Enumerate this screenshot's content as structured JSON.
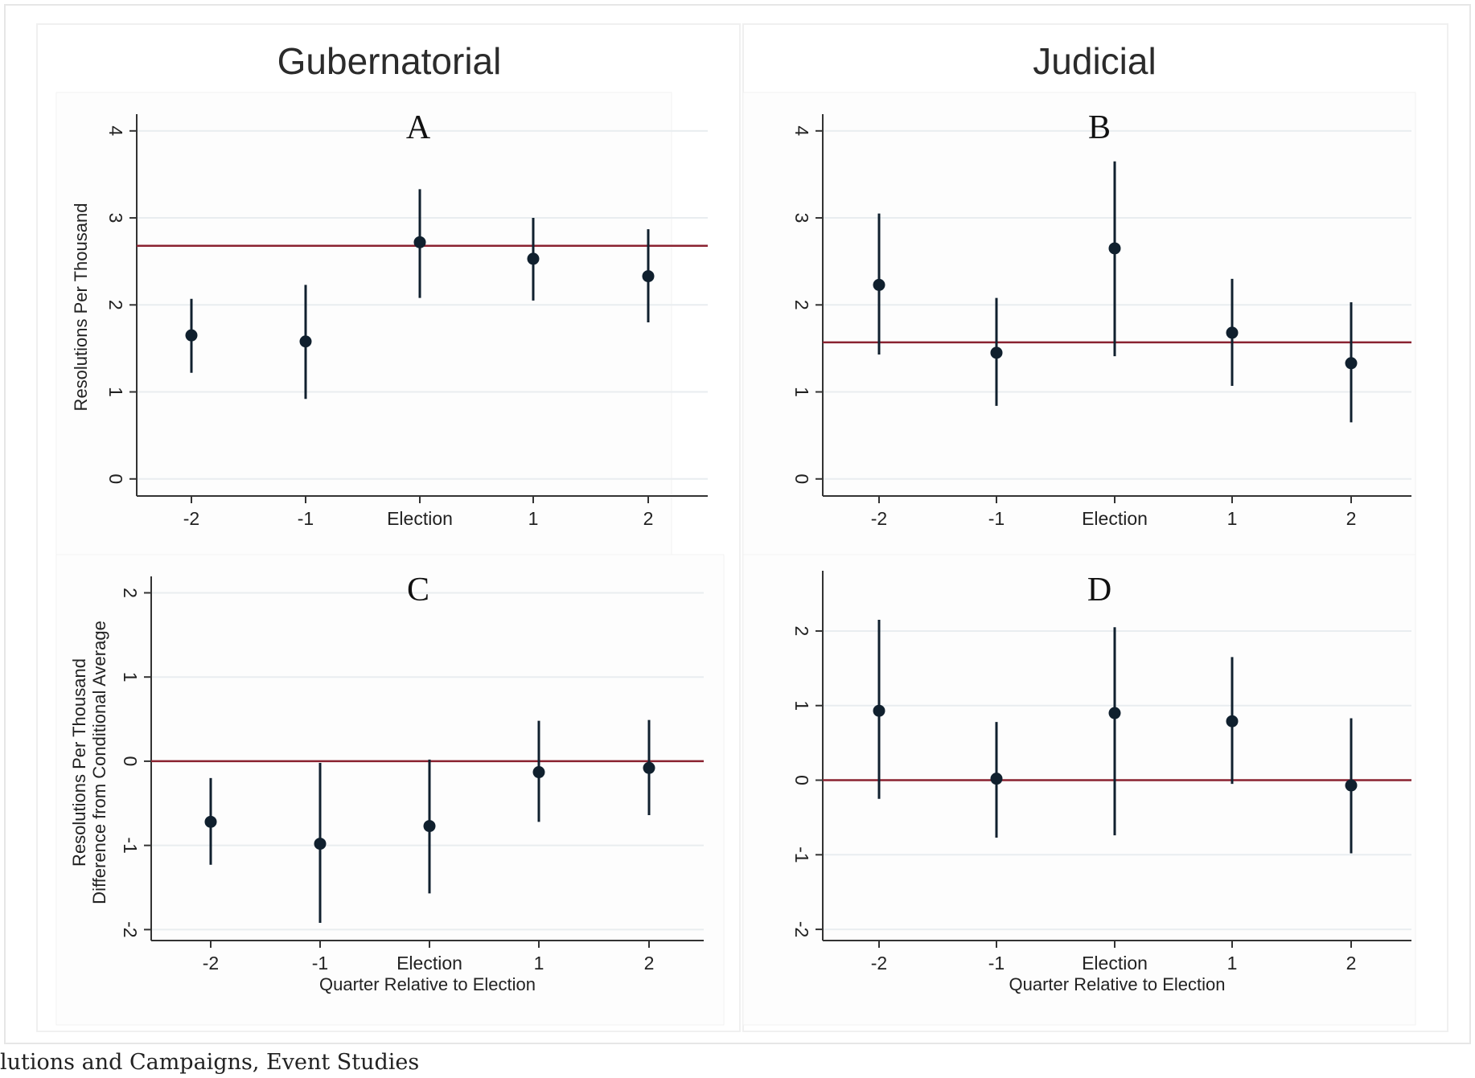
{
  "figure": {
    "column_titles": [
      "Gubernatorial",
      "Judicial"
    ],
    "caption": "lutions and Campaigns, Event Studies",
    "colors": {
      "point": "#10202e",
      "reference_line": "#8a2230",
      "grid": "#e9edf0",
      "axis": "#333333"
    }
  },
  "chart_data": [
    {
      "panel": "A",
      "column": "Gubernatorial",
      "type": "scatter",
      "categories": [
        "-2",
        "-1",
        "Election",
        "1",
        "2"
      ],
      "values": [
        1.65,
        1.58,
        2.72,
        2.53,
        2.33
      ],
      "ci_low": [
        1.22,
        0.92,
        2.08,
        2.05,
        1.8
      ],
      "ci_high": [
        2.07,
        2.23,
        3.33,
        3.0,
        2.87
      ],
      "reference_line": 2.68,
      "ylabel": "Resolutions Per Thousand",
      "xlabel": "",
      "ylim": [
        -0.15,
        4.1
      ],
      "yticks": [
        0,
        1,
        2,
        3,
        4
      ],
      "grid": true
    },
    {
      "panel": "B",
      "column": "Judicial",
      "type": "scatter",
      "categories": [
        "-2",
        "-1",
        "Election",
        "1",
        "2"
      ],
      "values": [
        2.23,
        1.45,
        2.65,
        1.68,
        1.33
      ],
      "ci_low": [
        1.43,
        0.84,
        1.41,
        1.07,
        0.65
      ],
      "ci_high": [
        3.05,
        2.08,
        3.65,
        2.3,
        2.03
      ],
      "reference_line": 1.57,
      "ylabel": "",
      "xlabel": "",
      "ylim": [
        -0.15,
        4.1
      ],
      "yticks": [
        0,
        1,
        2,
        3,
        4
      ],
      "grid": true
    },
    {
      "panel": "C",
      "column": "Gubernatorial",
      "type": "scatter",
      "categories": [
        "-2",
        "-1",
        "Election",
        "1",
        "2"
      ],
      "values": [
        -0.72,
        -0.98,
        -0.77,
        -0.13,
        -0.08
      ],
      "ci_low": [
        -1.23,
        -1.92,
        -1.57,
        -0.72,
        -0.64
      ],
      "ci_high": [
        -0.2,
        -0.02,
        0.02,
        0.48,
        0.49
      ],
      "reference_line": 0,
      "ylabel": "Resolutions Per Thousand\nDifference from Conditional Average",
      "xlabel": "Quarter Relative to Election",
      "ylim": [
        -2.13,
        2.1
      ],
      "yticks": [
        -2,
        -1,
        0,
        1,
        2
      ],
      "grid": true
    },
    {
      "panel": "D",
      "column": "Judicial",
      "type": "scatter",
      "categories": [
        "-2",
        "-1",
        "Election",
        "1",
        "2"
      ],
      "values": [
        0.93,
        0.02,
        0.9,
        0.79,
        -0.07
      ],
      "ci_low": [
        -0.25,
        -0.77,
        -0.74,
        -0.05,
        -0.98
      ],
      "ci_high": [
        2.15,
        0.78,
        2.05,
        1.65,
        0.83
      ],
      "reference_line": 0,
      "ylabel": "",
      "xlabel": "Quarter Relative to Election",
      "ylim": [
        -2.15,
        2.7
      ],
      "yticks": [
        -2,
        -1,
        0,
        1,
        2
      ],
      "grid": true
    }
  ]
}
